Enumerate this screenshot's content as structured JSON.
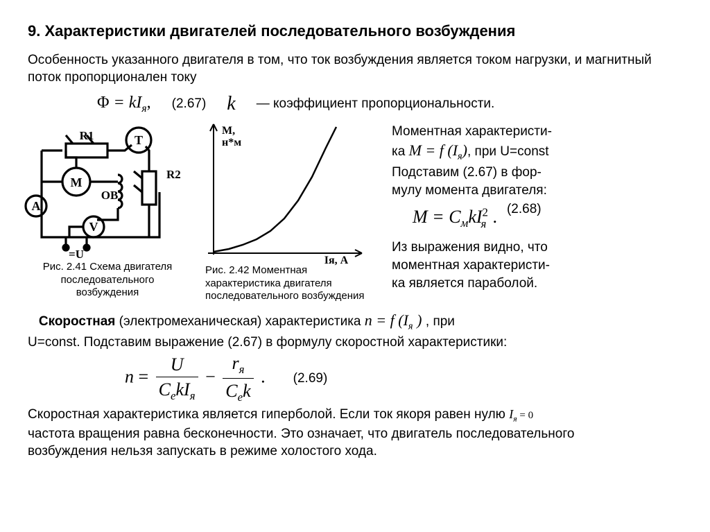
{
  "title": "9. Характеристики двигателей последовательного возбуждения",
  "intro": "Особенность указанного двигателя в том, что ток возбуждения является током нагрузки,  и магнитный поток  пропорционален току",
  "eq267": {
    "phi": "Φ",
    "eq": " = ",
    "k": "kI",
    "sub": "я",
    "comma": ",",
    "num": "(2.67)",
    "k_sym": "k",
    "k_desc": " — коэффициент пропорциональности."
  },
  "fig241": {
    "labels": {
      "T": "T",
      "R1": "R1",
      "R2": "R2",
      "M": "M",
      "OB": "OB",
      "A": "A",
      "V": "V",
      "U": "=U"
    },
    "cap_l1": "Рис. 2.41 Схема двигателя",
    "cap_l2": "последовательного",
    "cap_l3": "возбуждения"
  },
  "fig242": {
    "ylabel1": "M,",
    "ylabel2": "н*м",
    "xlabel": "Iя, A",
    "cap_l1": "Рис.      2.42      Моментная",
    "cap_l2": "характеристика        двигателя",
    "cap_l3": "последовательного возбуждения",
    "type": "parabola",
    "curve": [
      [
        18,
        186
      ],
      [
        40,
        182
      ],
      [
        60,
        176
      ],
      [
        80,
        168
      ],
      [
        100,
        156
      ],
      [
        120,
        138
      ],
      [
        140,
        112
      ],
      [
        160,
        78
      ],
      [
        180,
        36
      ],
      [
        195,
        6
      ]
    ],
    "line_color": "#000000",
    "line_width": 2.5,
    "background": "#ffffff"
  },
  "right": {
    "p1a": "Моментная характеристи-",
    "p1b": "ка   ",
    "p1_formula": "M = f (I",
    "p1_sub": "я",
    "p1_close": ")",
    "p1c": ", при U=const",
    "p2a": "Подставим (2.67)  в фор-",
    "p2b": "мулу момента двигателя:",
    "eq268": {
      "lhs": "M = C",
      "sub1": "м",
      "mid": "kI",
      "sub2": "я",
      "sup": "2",
      "dot": ".",
      "num": "(2.68)"
    },
    "p3a": "Из выражения видно, что",
    "p3b": "моментная характеристи-",
    "p3c": "ка является  параболой."
  },
  "speed": {
    "line1a": "Скоростная",
    "line1b": " (электромеханическая) характеристика   ",
    "nf": "n = f (I",
    "nf_sub": "я",
    "nf_close": " )",
    "line1c": "  , при",
    "line2": "U=const. Подставим выражение (2.67) в формулу скоростной характеристики:",
    "eq269": {
      "n": "n",
      "eq": " = ",
      "num1": "U",
      "den1a": "C",
      "den1_sub": "e",
      "den1b": "kI",
      "den1_sub2": "я",
      "minus": " − ",
      "num2a": "r",
      "num2_sub": "я",
      "den2a": "C",
      "den2_sub": "e",
      "den2b": "k",
      "dot": ".",
      "label": "(2.69)"
    },
    "p_after1": "   Скоростная характеристика является гиперболой. Если ток якоря равен  нулю ",
    "iya0": "I",
    "iya0_sub": "я",
    "iya0_eq": " = 0",
    "p_after2": "частота вращения равна бесконечности. Это означает, что двигатель последовательного",
    "p_after3": "возбуждения  нельзя  запускать  в режиме холостого хода."
  }
}
